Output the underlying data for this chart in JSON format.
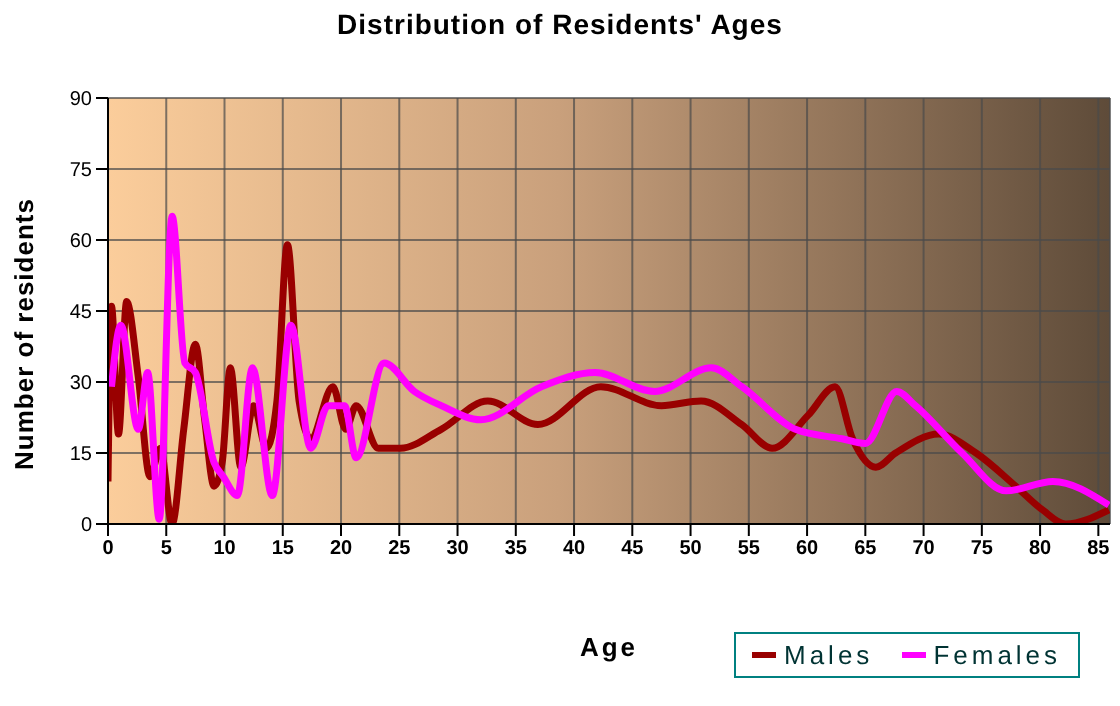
{
  "chart_data": {
    "type": "line",
    "title": "Distribution of Residents' Ages",
    "xlabel": "Age",
    "ylabel": "Number of residents",
    "xlim": [
      0,
      86
    ],
    "xticks": [
      0,
      5,
      10,
      15,
      20,
      25,
      30,
      35,
      40,
      45,
      50,
      55,
      60,
      65,
      70,
      75,
      80,
      85
    ],
    "ylim": [
      0,
      90
    ],
    "yticks": [
      0,
      15,
      30,
      45,
      60,
      75,
      90
    ],
    "grid": true,
    "legend": "bottom right",
    "marker": "none",
    "line_style": "solid",
    "series": [
      {
        "name": "Males",
        "color": "#990000",
        "x": [
          0,
          0.3,
          0.9,
          1.6,
          2.6,
          3.6,
          4.5,
          5.5,
          6.5,
          7.5,
          8.3,
          9.1,
          9.8,
          10.5,
          11.4,
          12.5,
          13.6,
          14.5,
          15.4,
          16.4,
          17.4,
          19.3,
          20.4,
          21.3,
          23.2,
          25.1,
          28.6,
          32.6,
          36.9,
          42.3,
          47.5,
          50.9,
          54.4,
          57,
          60.1,
          62.4,
          63.9,
          65.9,
          67.6,
          71.3,
          74.5,
          77.9,
          80.2,
          82.2,
          85.9
        ],
        "values": [
          9,
          46,
          19,
          47,
          31,
          10,
          16,
          0,
          20,
          38,
          22,
          8,
          13,
          33,
          12,
          25,
          16,
          26,
          59,
          26,
          18,
          29,
          20,
          25,
          16,
          16,
          20,
          26,
          21,
          29,
          25,
          26,
          21,
          16,
          23,
          29,
          18,
          12,
          15,
          19,
          15,
          8,
          3,
          0,
          3
        ]
      },
      {
        "name": "Females",
        "color": "#ff00ff",
        "x": [
          0.3,
          1.1,
          2.6,
          3.4,
          4.4,
          5.5,
          6.6,
          7.5,
          9.1,
          9.9,
          11.1,
          12.4,
          14.1,
          15.7,
          17.4,
          18.9,
          20.3,
          21.3,
          23.7,
          26.3,
          28.6,
          32,
          37.2,
          41.8,
          46.9,
          51.8,
          54.4,
          59,
          63,
          65,
          67.7,
          69.3,
          73.3,
          77.1,
          81.1,
          85.9
        ],
        "values": [
          29,
          42,
          20,
          32,
          1,
          65,
          34,
          32,
          13,
          10,
          6,
          33,
          6,
          42,
          16,
          25,
          25,
          14,
          34,
          28,
          25,
          22,
          29,
          32,
          28,
          33,
          29,
          20,
          18,
          17,
          28,
          25,
          15,
          7,
          9,
          4
        ]
      }
    ]
  }
}
